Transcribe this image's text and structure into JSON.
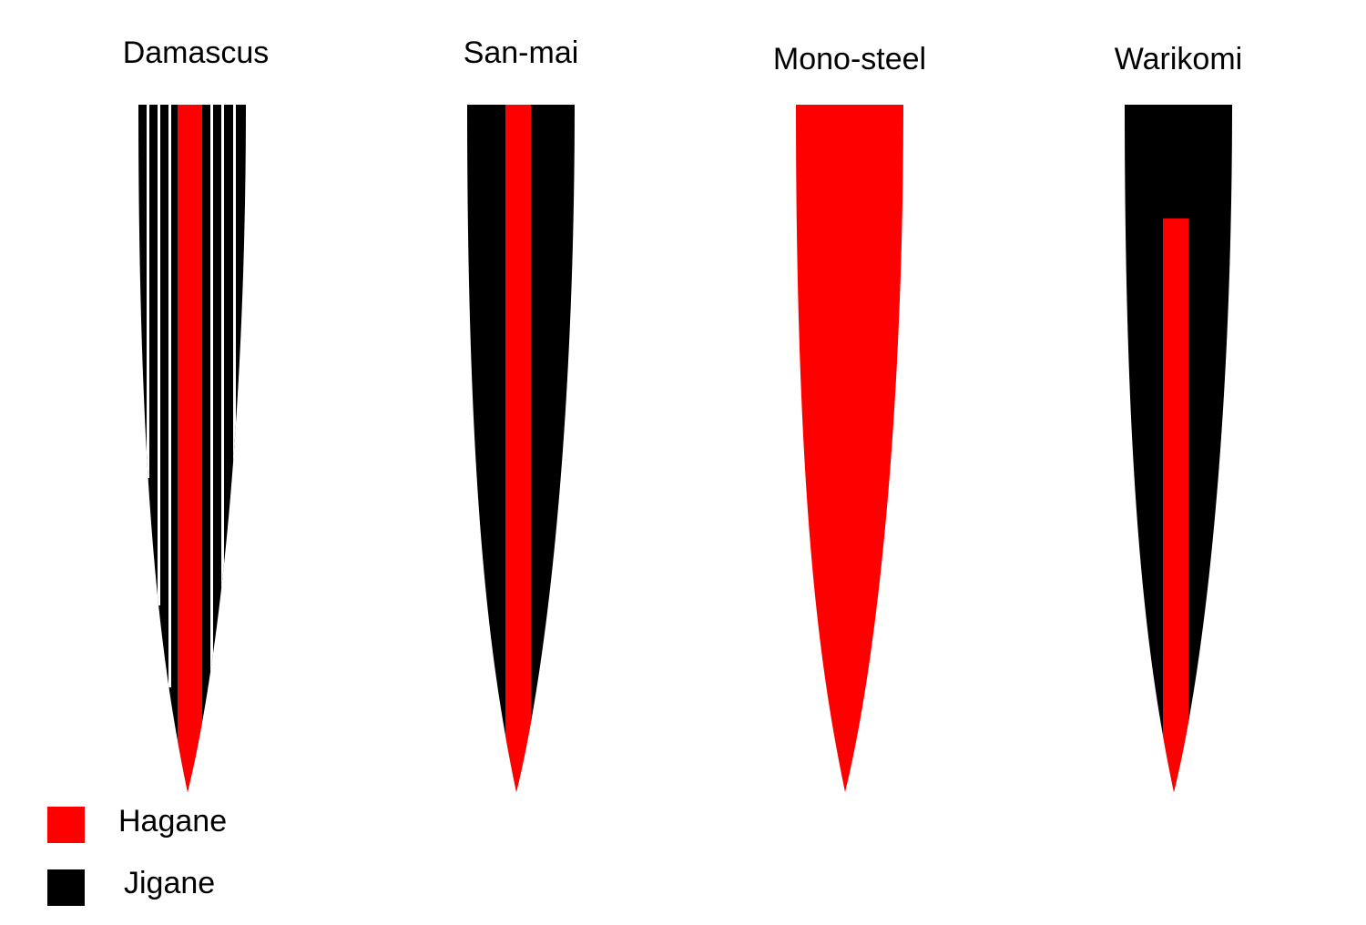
{
  "blades": [
    {
      "label": "Damascus"
    },
    {
      "label": "San-mai"
    },
    {
      "label": "Mono-steel"
    },
    {
      "label": "Warikomi"
    }
  ],
  "legend": [
    {
      "label": "Hagane"
    },
    {
      "label": "Jigane"
    }
  ]
}
